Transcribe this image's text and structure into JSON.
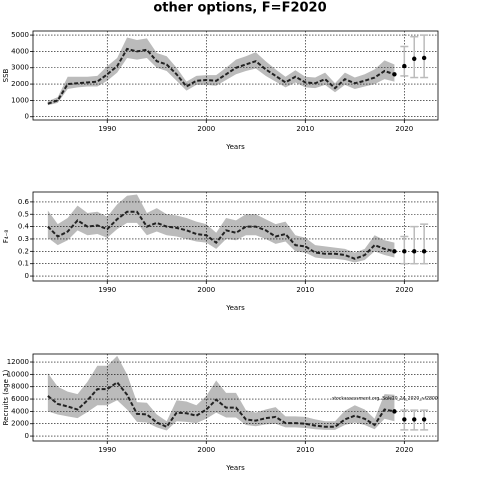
{
  "title": "other options, F=F2020",
  "chart_data": [
    {
      "type": "line",
      "ylabel": "SSB",
      "xlabel": "Years",
      "x": [
        1984,
        1985,
        1986,
        1987,
        1988,
        1989,
        1990,
        1991,
        1992,
        1993,
        1994,
        1995,
        1996,
        1997,
        1998,
        1999,
        2000,
        2001,
        2002,
        2003,
        2004,
        2005,
        2006,
        2007,
        2008,
        2009,
        2010,
        2011,
        2012,
        2013,
        2014,
        2015,
        2016,
        2017,
        2018,
        2019
      ],
      "values": [
        800,
        1000,
        2000,
        2050,
        2100,
        2150,
        2600,
        3100,
        4150,
        4000,
        4100,
        3400,
        3200,
        2600,
        1850,
        2200,
        2250,
        2200,
        2600,
        3000,
        3200,
        3400,
        2900,
        2500,
        2100,
        2450,
        2100,
        2050,
        2300,
        1750,
        2300,
        2050,
        2200,
        2400,
        2800,
        2600
      ],
      "band": {
        "lower": [
          700,
          850,
          1700,
          1800,
          1850,
          1850,
          2200,
          2700,
          3600,
          3500,
          3600,
          3000,
          2800,
          2200,
          1600,
          1950,
          1950,
          1900,
          2250,
          2600,
          2800,
          2950,
          2500,
          2150,
          1800,
          2100,
          1800,
          1750,
          1950,
          1500,
          1950,
          1700,
          1850,
          2000,
          2300,
          2150
        ],
        "upper": [
          950,
          1200,
          2450,
          2450,
          2450,
          2500,
          3100,
          3600,
          4850,
          4700,
          4800,
          3900,
          3700,
          3000,
          2150,
          2500,
          2550,
          2550,
          3000,
          3500,
          3700,
          3950,
          3400,
          2900,
          2450,
          2850,
          2450,
          2400,
          2700,
          2050,
          2700,
          2400,
          2600,
          2900,
          3450,
          3200
        ]
      },
      "projection": {
        "x": [
          2020,
          2021,
          2022
        ],
        "values": [
          3100,
          3550,
          3600
        ],
        "lower": [
          2500,
          2400,
          2400
        ],
        "upper": [
          4300,
          4900,
          5000
        ]
      },
      "xlim": [
        1982.5,
        2023.4
      ],
      "xticks": [
        1990,
        2000,
        2010,
        2020
      ],
      "ylim": [
        -200,
        5250
      ],
      "yticks": [
        0,
        1000,
        2000,
        3000,
        4000,
        5000
      ],
      "grid": true,
      "color": "#222222",
      "band_color": "#bbbbbb",
      "projection_color": "#bbbbbb"
    },
    {
      "type": "line",
      "ylabel": "F₄₋₈",
      "xlabel": "Years",
      "x": [
        1984,
        1985,
        1986,
        1987,
        1988,
        1989,
        1990,
        1991,
        1992,
        1993,
        1994,
        1995,
        1996,
        1997,
        1998,
        1999,
        2000,
        2001,
        2002,
        2003,
        2004,
        2005,
        2006,
        2007,
        2008,
        2009,
        2010,
        2011,
        2012,
        2013,
        2014,
        2015,
        2016,
        2017,
        2018,
        2019
      ],
      "values": [
        0.4,
        0.32,
        0.36,
        0.45,
        0.4,
        0.41,
        0.38,
        0.46,
        0.52,
        0.52,
        0.4,
        0.43,
        0.4,
        0.39,
        0.37,
        0.34,
        0.33,
        0.27,
        0.37,
        0.35,
        0.4,
        0.4,
        0.37,
        0.32,
        0.34,
        0.25,
        0.24,
        0.19,
        0.18,
        0.18,
        0.17,
        0.14,
        0.17,
        0.25,
        0.22,
        0.2
      ],
      "band": {
        "lower": [
          0.31,
          0.25,
          0.29,
          0.37,
          0.33,
          0.34,
          0.31,
          0.38,
          0.43,
          0.43,
          0.33,
          0.36,
          0.33,
          0.32,
          0.3,
          0.28,
          0.27,
          0.22,
          0.3,
          0.29,
          0.33,
          0.33,
          0.3,
          0.26,
          0.28,
          0.2,
          0.19,
          0.15,
          0.14,
          0.14,
          0.13,
          0.11,
          0.13,
          0.2,
          0.17,
          0.15
        ],
        "upper": [
          0.53,
          0.42,
          0.47,
          0.57,
          0.51,
          0.52,
          0.48,
          0.58,
          0.65,
          0.66,
          0.51,
          0.55,
          0.5,
          0.49,
          0.47,
          0.44,
          0.42,
          0.35,
          0.47,
          0.45,
          0.5,
          0.5,
          0.46,
          0.42,
          0.44,
          0.33,
          0.31,
          0.25,
          0.24,
          0.23,
          0.22,
          0.19,
          0.22,
          0.33,
          0.29,
          0.27
        ]
      },
      "projection": {
        "x": [
          2020,
          2021,
          2022
        ],
        "values": [
          0.2,
          0.2,
          0.2
        ],
        "lower": [
          0.1,
          0.1,
          0.1
        ],
        "upper": [
          0.32,
          0.4,
          0.42
        ]
      },
      "xlim": [
        1982.5,
        2023.4
      ],
      "xticks": [
        1990,
        2000,
        2010,
        2020
      ],
      "ylim": [
        -0.04,
        0.68
      ],
      "yticks": [
        0,
        0.1,
        0.2,
        0.3,
        0.4,
        0.5,
        0.6
      ],
      "grid": true,
      "color": "#222222",
      "band_color": "#bbbbbb",
      "projection_color": "#bbbbbb"
    },
    {
      "type": "line",
      "ylabel": "Recruits (age 1)",
      "xlabel": "Years",
      "annotation": "stockassessment.org, Sole20_24_2020_r-f2800 , git: c28b",
      "x": [
        1984,
        1985,
        1986,
        1987,
        1988,
        1989,
        1990,
        1991,
        1992,
        1993,
        1994,
        1995,
        1996,
        1997,
        1998,
        1999,
        2000,
        2001,
        2002,
        2003,
        2004,
        2005,
        2006,
        2007,
        2008,
        2009,
        2010,
        2011,
        2012,
        2013,
        2014,
        2015,
        2016,
        2017,
        2018,
        2019
      ],
      "values": [
        6500,
        5200,
        4800,
        4300,
        5800,
        7600,
        7600,
        8700,
        6700,
        3600,
        3500,
        2200,
        1500,
        3800,
        3700,
        3300,
        4300,
        5900,
        4600,
        4600,
        2700,
        2500,
        2900,
        3100,
        2100,
        2100,
        2000,
        1700,
        1500,
        1500,
        2700,
        3300,
        2800,
        1800,
        4300,
        4000
      ],
      "band": {
        "lower": [
          4000,
          3500,
          3200,
          2900,
          3900,
          5000,
          5000,
          5800,
          4300,
          2300,
          2200,
          1400,
          900,
          2400,
          2300,
          2100,
          2800,
          3800,
          3000,
          3000,
          1800,
          1600,
          1900,
          2000,
          1400,
          1400,
          1300,
          1100,
          1000,
          1000,
          1800,
          2200,
          1800,
          1100,
          2800,
          2400
        ],
        "upper": [
          10200,
          8000,
          7200,
          6800,
          8800,
          11400,
          11400,
          13000,
          10000,
          5500,
          5400,
          3500,
          2400,
          5800,
          5600,
          5000,
          6500,
          9000,
          7000,
          7000,
          4200,
          3800,
          4300,
          4700,
          3200,
          3200,
          3100,
          2700,
          2400,
          2400,
          4100,
          5000,
          4300,
          2800,
          6800,
          6700
        ]
      },
      "projection": {
        "x": [
          2020,
          2021,
          2022
        ],
        "values": [
          2700,
          2700,
          2700
        ],
        "lower": [
          1000,
          1000,
          1000
        ],
        "upper": [
          4200,
          4200,
          4200
        ]
      },
      "xlim": [
        1982.5,
        2023.4
      ],
      "xticks": [
        1990,
        2000,
        2010,
        2020
      ],
      "ylim": [
        -800,
        13300
      ],
      "yticks": [
        0,
        2000,
        4000,
        6000,
        8000,
        10000,
        12000
      ],
      "grid": true,
      "color": "#222222",
      "band_color": "#bbbbbb",
      "projection_color": "#bbbbbb"
    }
  ]
}
